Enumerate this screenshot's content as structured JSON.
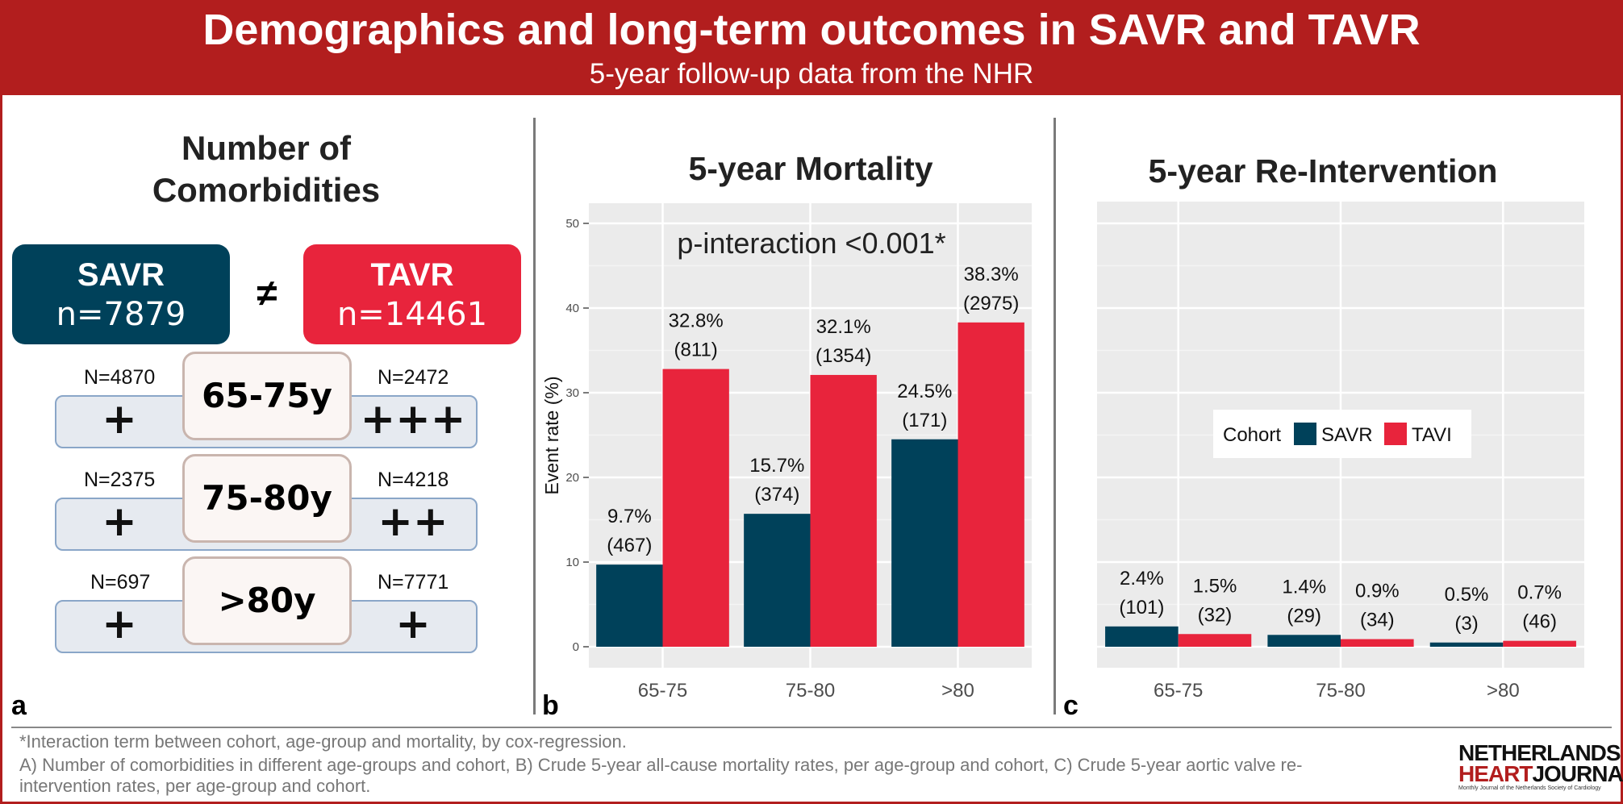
{
  "header": {
    "title": "Demographics and long-term outcomes in SAVR and TAVR",
    "subtitle": "5-year follow-up data from the NHR"
  },
  "panel_a": {
    "label": "a",
    "title_line1": "Number of",
    "title_line2": "Comorbidities",
    "savr": {
      "name": "SAVR",
      "n": "n=7879",
      "color": "#00415a"
    },
    "tavr": {
      "name": "TAVR",
      "n": "n=14461",
      "color": "#e8243c"
    },
    "neq_symbol": "≠",
    "rows": [
      {
        "age": "65-75y",
        "savr_n": "N=4870",
        "tavr_n": "N=2472",
        "savr_sym": "+",
        "tavr_sym": "+++"
      },
      {
        "age": "75-80y",
        "savr_n": "N=2375",
        "tavr_n": "N=4218",
        "savr_sym": "+",
        "tavr_sym": "++"
      },
      {
        "age": ">80y",
        "savr_n": "N=697",
        "tavr_n": "N=7771",
        "savr_sym": "+",
        "tavr_sym": "+"
      }
    ]
  },
  "panel_b": {
    "label": "b"
  },
  "panel_c": {
    "label": "c"
  },
  "chart_data": [
    {
      "type": "bar",
      "title": "5-year Mortality",
      "ylabel": "Event rate (%)",
      "xlabel": "",
      "ylim": [
        0,
        52
      ],
      "yticks": [
        "0",
        "10",
        "20",
        "30",
        "40",
        "50"
      ],
      "categories": [
        "65-75",
        "75-80",
        ">80"
      ],
      "annotation": "p-interaction <0.001*",
      "series": [
        {
          "name": "SAVR",
          "color": "#00415a",
          "values": [
            9.7,
            15.7,
            24.5
          ],
          "labels": [
            "9.7%",
            "15.7%",
            "24.5%"
          ],
          "counts": [
            "(467)",
            "(374)",
            "(171)"
          ]
        },
        {
          "name": "TAVI",
          "color": "#e8243c",
          "values": [
            32.8,
            32.1,
            38.3
          ],
          "labels": [
            "32.8%",
            "32.1%",
            "38.3%"
          ],
          "counts": [
            "(811)",
            "(1354)",
            "(2975)"
          ]
        }
      ],
      "grid": true
    },
    {
      "type": "bar",
      "title": "5-year Re-Intervention",
      "ylabel": "",
      "xlabel": "",
      "ylim": [
        0,
        52
      ],
      "categories": [
        "65-75",
        "75-80",
        ">80"
      ],
      "legend": {
        "title": "Cohort",
        "entries": [
          "SAVR",
          "TAVI"
        ],
        "placement": "center"
      },
      "series": [
        {
          "name": "SAVR",
          "color": "#00415a",
          "values": [
            2.4,
            1.4,
            0.5
          ],
          "labels": [
            "2.4%",
            "1.4%",
            "0.5%"
          ],
          "counts": [
            "(101)",
            "(29)",
            "(3)"
          ]
        },
        {
          "name": "TAVI",
          "color": "#e8243c",
          "values": [
            1.5,
            0.9,
            0.7
          ],
          "labels": [
            "1.5%",
            "0.9%",
            "0.7%"
          ],
          "counts": [
            "(32)",
            "(34)",
            "(46)"
          ]
        }
      ],
      "grid": true
    }
  ],
  "footer": {
    "line1": "*Interaction term between cohort, age-group and mortality, by cox-regression.",
    "line2": "A) Number of comorbidities in different age-groups and cohort, B) Crude 5-year all-cause mortality rates, per age-group and cohort, C) Crude 5-year aortic valve re-",
    "line3": "intervention rates, per age-group and cohort."
  },
  "logo": {
    "line1": "NETHERLANDS",
    "line2a": "HEART",
    "line2b": "JOURNAL",
    "line3": "Monthly Journal of the Netherlands Society of Cardiology",
    "accent": "#b21e1e"
  }
}
